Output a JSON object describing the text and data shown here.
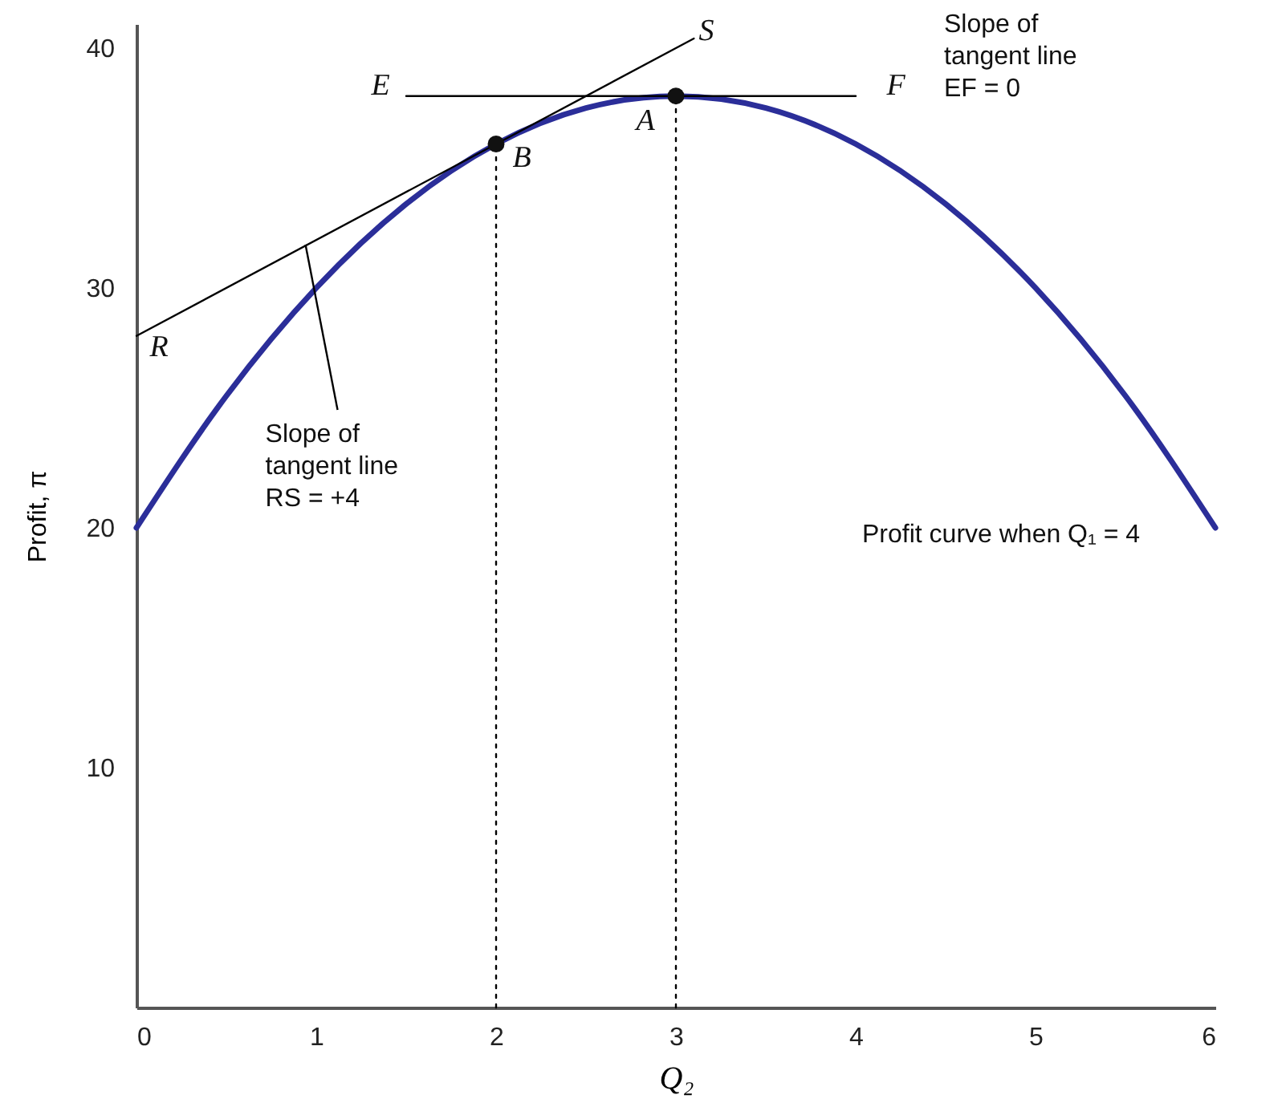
{
  "chart_data": {
    "type": "line",
    "xlabel": "Q₂",
    "ylabel": "Profit, π",
    "xlim": [
      0,
      6
    ],
    "ylim": [
      0,
      41
    ],
    "xticks": [
      0,
      1,
      2,
      3,
      4,
      5,
      6
    ],
    "yticks": [
      10,
      20,
      30,
      40
    ],
    "grid": false,
    "series": [
      {
        "color": "#2b2e99",
        "x": [
          0,
          0.5,
          1,
          1.5,
          2,
          2.5,
          3,
          3.5,
          4,
          4.5,
          5,
          5.5,
          6
        ],
        "values": [
          20,
          25.5,
          30,
          33.5,
          36,
          37.5,
          38,
          37.5,
          36,
          33.5,
          30,
          25.5,
          20
        ]
      },
      {
        "color": "#000000",
        "x": [
          0,
          3.1
        ],
        "values": [
          28,
          40.4
        ]
      },
      {
        "color": "#000000",
        "x": [
          1.5,
          4
        ],
        "values": [
          38,
          38
        ]
      },
      {
        "color": "#000000",
        "line_style": "dotted",
        "x": [
          2,
          2
        ],
        "values": [
          0,
          36
        ]
      },
      {
        "color": "#000000",
        "line_style": "dotted",
        "x": [
          3,
          3
        ],
        "values": [
          0,
          38
        ]
      },
      {
        "type": "scatter",
        "color": "#111111",
        "marker": "circle",
        "x": [
          2,
          3
        ],
        "values": [
          36,
          38
        ]
      }
    ],
    "annotations": [
      "S",
      "E",
      "F",
      "A",
      "B",
      "R",
      {
        "text": "Slope of\ntangent line\nRS = +4",
        "x": 0.94,
        "y": 31.8
      },
      "Slope of\ntangent line\nEF = 0",
      "Profit curve when Q₁ = 4"
    ]
  }
}
